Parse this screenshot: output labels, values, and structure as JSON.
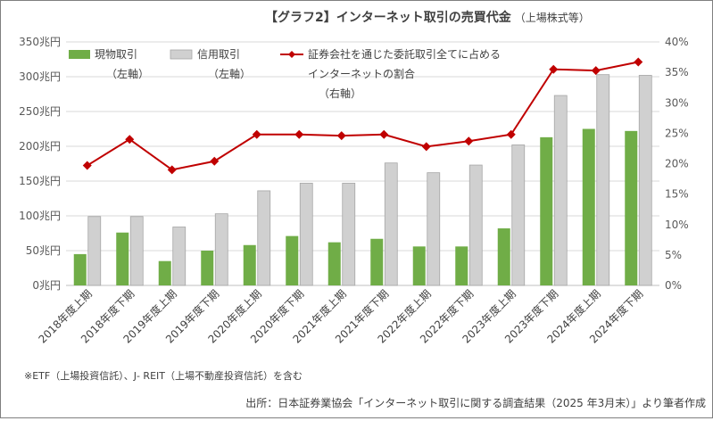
{
  "chart_data": {
    "type": "bar",
    "title": "【グラフ2】インターネット取引の売買代金",
    "subtitle": "（上場株式等）",
    "categories": [
      "2018年度上期",
      "2018年度下期",
      "2019年度上期",
      "2019年度下期",
      "2020年度上期",
      "2020年度下期",
      "2021年度上期",
      "2021年度下期",
      "2022年度上期",
      "2022年度下期",
      "2023年度上期",
      "2023年度下期",
      "2024年度上期",
      "2024年度下期"
    ],
    "left_axis": {
      "unit": "兆円",
      "ylim": [
        0,
        350
      ],
      "tick_labels": [
        "0兆円",
        "50兆円",
        "100兆円",
        "150兆円",
        "200兆円",
        "250兆円",
        "300兆円",
        "350兆円"
      ]
    },
    "right_axis": {
      "unit": "%",
      "ylim": [
        0,
        40
      ],
      "tick_labels": [
        "0%",
        "5%",
        "10%",
        "15%",
        "20%",
        "25%",
        "30%",
        "35%",
        "40%"
      ]
    },
    "series": [
      {
        "name": "現物取引",
        "name_line2": "（左軸）",
        "type": "bar",
        "axis": "left",
        "color": "#70ad47",
        "values": [
          45,
          76,
          35,
          50,
          58,
          71,
          62,
          67,
          56,
          56,
          82,
          213,
          225,
          222
        ]
      },
      {
        "name": "信用取引",
        "name_line2": "（左軸）",
        "type": "bar",
        "axis": "left",
        "color": "#d0d0d0",
        "values": [
          99,
          99,
          84,
          103,
          136,
          147,
          147,
          176,
          162,
          173,
          202,
          273,
          303,
          302
        ]
      },
      {
        "name": "証券会社を通じた委託取引全てに占める",
        "name_line2": "インターネットの割合",
        "name_line3": "（右軸）",
        "type": "line",
        "axis": "right",
        "color": "#c00000",
        "values": [
          19.7,
          24.0,
          19.0,
          20.4,
          24.8,
          24.8,
          24.6,
          24.8,
          22.8,
          23.7,
          24.8,
          35.5,
          35.3,
          36.7
        ]
      }
    ],
    "grid": true,
    "legend": "top-left"
  },
  "footnote": "※ETF（上場投資信託）、J‐ REIT（上場不動産投資信託）を含む",
  "source": "出所：日本証券業協会「インターネット取引に関する調査結果（2025 年3月末）」より筆者作成"
}
